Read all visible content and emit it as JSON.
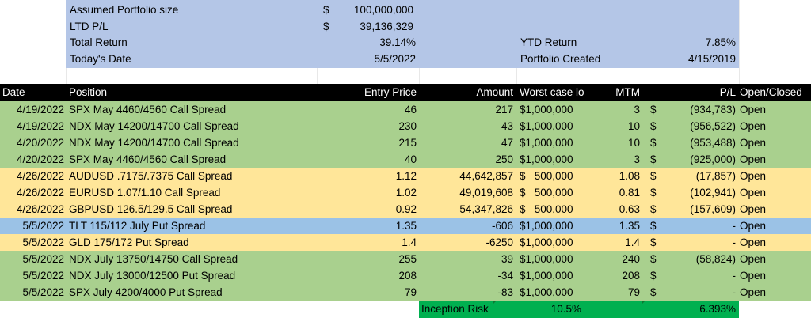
{
  "summary": {
    "assumed_label": "Assumed Portfolio size",
    "assumed_currency": "$",
    "assumed_value": "100,000,000",
    "ltd_label": "LTD P/L",
    "ltd_currency": "$",
    "ltd_value": "39,136,329",
    "total_return_label": "Total Return",
    "total_return_value": "39.14%",
    "ytd_label": "YTD Return",
    "ytd_value": "7.85%",
    "today_label": "Today's Date",
    "today_value": "5/5/2022",
    "created_label": "Portfolio Created",
    "created_value": "4/15/2019"
  },
  "headers": {
    "date": "Date",
    "position": "Position",
    "entry": "Entry Price",
    "amount": "Amount",
    "worst": "Worst case lo",
    "mtm": "MTM",
    "pl": "P/L",
    "status": "Open/Closed"
  },
  "rows": [
    {
      "date": "4/19/2022",
      "position": "SPX May 4460/4560 Call Spread",
      "entry": "46",
      "amount": "217",
      "worst": "$1,000,000",
      "mtm": "3",
      "cur": "$",
      "pl": "(934,783)",
      "status": "Open",
      "color": "green"
    },
    {
      "date": "4/19/2022",
      "position": "NDX May 14200/14700 Call Spread",
      "entry": "230",
      "amount": "43",
      "worst": "$1,000,000",
      "mtm": "10",
      "cur": "$",
      "pl": "(956,522)",
      "status": "Open",
      "color": "green"
    },
    {
      "date": "4/20/2022",
      "position": "NDX May 14200/14700 Call Spread",
      "entry": "215",
      "amount": "47",
      "worst": "$1,000,000",
      "mtm": "10",
      "cur": "$",
      "pl": "(953,488)",
      "status": "Open",
      "color": "green"
    },
    {
      "date": "4/20/2022",
      "position": "SPX May 4460/4560 Call Spread",
      "entry": "40",
      "amount": "250",
      "worst": "$1,000,000",
      "mtm": "3",
      "cur": "$",
      "pl": "(925,000)",
      "status": "Open",
      "color": "green"
    },
    {
      "date": "4/26/2022",
      "position": "AUDUSD .7175/.7375 Call Spread",
      "entry": "1.12",
      "amount": "44,642,857",
      "worst": "$   500,000",
      "mtm": "1.08",
      "cur": "$",
      "pl": "(17,857)",
      "status": "Open",
      "color": "yellow"
    },
    {
      "date": "4/26/2022",
      "position": "EURUSD 1.07/1.10 Call Spread",
      "entry": "1.02",
      "amount": "49,019,608",
      "worst": "$   500,000",
      "mtm": "0.81",
      "cur": "$",
      "pl": "(102,941)",
      "status": "Open",
      "color": "yellow"
    },
    {
      "date": "4/26/2022",
      "position": "GBPUSD 126.5/129.5 Call Spread",
      "entry": "0.92",
      "amount": "54,347,826",
      "worst": "$   500,000",
      "mtm": "0.63",
      "cur": "$",
      "pl": "(157,609)",
      "status": "Open",
      "color": "yellow"
    },
    {
      "date": "5/5/2022",
      "position": "TLT 115/112 July Put Spread",
      "entry": "1.35",
      "amount": "-606",
      "worst": "$1,000,000",
      "mtm": "1.35",
      "cur": "$",
      "pl": "-",
      "status": "Open",
      "color": "blue"
    },
    {
      "date": "5/5/2022",
      "position": "GLD 175/172 Put Spread",
      "entry": "1.4",
      "amount": "-6250",
      "worst": "$1,000,000",
      "mtm": "1.4",
      "cur": "$",
      "pl": "-",
      "status": "Open",
      "color": "yellow"
    },
    {
      "date": "5/5/2022",
      "position": "NDX July 13750/14750 Call Spread",
      "entry": "255",
      "amount": "39",
      "worst": "$1,000,000",
      "mtm": "240",
      "cur": "$",
      "pl": "(58,824)",
      "status": "Open",
      "color": "green"
    },
    {
      "date": "5/5/2022",
      "position": "NDX July 13000/12500 Put Spread",
      "entry": "208",
      "amount": "-34",
      "worst": "$1,000,000",
      "mtm": "208",
      "cur": "$",
      "pl": "-",
      "status": "Open",
      "color": "green"
    },
    {
      "date": "5/5/2022",
      "position": "SPX July 4200/4000 Put Spread",
      "entry": "79",
      "amount": "-83",
      "worst": "$1,000,000",
      "mtm": "79",
      "cur": "$",
      "pl": "-",
      "status": "Open",
      "color": "green"
    }
  ],
  "footer": {
    "risk_label": "Inception Risk",
    "risk_value": "10.5%",
    "second_value": "6.393%"
  }
}
